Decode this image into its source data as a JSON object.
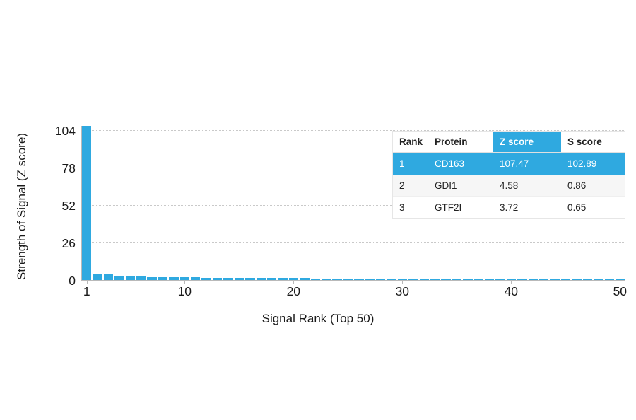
{
  "chart_data": {
    "type": "bar",
    "title": "",
    "xlabel": "Signal Rank (Top 50)",
    "ylabel": "Strength of Signal (Z score)",
    "x_ticks": [
      1,
      10,
      20,
      30,
      40,
      50
    ],
    "y_ticks": [
      0,
      26,
      52,
      78,
      104
    ],
    "ylim": [
      0,
      107.47
    ],
    "grid": "dotted horizontal lines at y ticks",
    "bar_color": "#2fa9e0",
    "values": [
      107.47,
      4.58,
      3.72,
      3.1,
      2.7,
      2.4,
      2.2,
      2.05,
      1.95,
      1.85,
      1.75,
      1.68,
      1.62,
      1.56,
      1.5,
      1.45,
      1.4,
      1.36,
      1.32,
      1.28,
      1.25,
      1.22,
      1.19,
      1.16,
      1.13,
      1.1,
      1.08,
      1.05,
      1.03,
      1.0,
      0.98,
      0.96,
      0.94,
      0.92,
      0.9,
      0.88,
      0.86,
      0.84,
      0.82,
      0.8,
      0.78,
      0.76,
      0.74,
      0.72,
      0.7,
      0.68,
      0.66,
      0.64,
      0.62,
      0.6
    ]
  },
  "table": {
    "highlight_color": "#2fa9e0",
    "headers": [
      "Rank",
      "Protein",
      "Z score",
      "S score"
    ],
    "rows": [
      {
        "rank": "1",
        "protein": "CD163",
        "z_score": "107.47",
        "s_score": "102.89",
        "highlighted": true
      },
      {
        "rank": "2",
        "protein": "GDI1",
        "z_score": "4.58",
        "s_score": "0.86",
        "highlighted": false
      },
      {
        "rank": "3",
        "protein": "GTF2I",
        "z_score": "3.72",
        "s_score": "0.65",
        "highlighted": false
      }
    ]
  }
}
